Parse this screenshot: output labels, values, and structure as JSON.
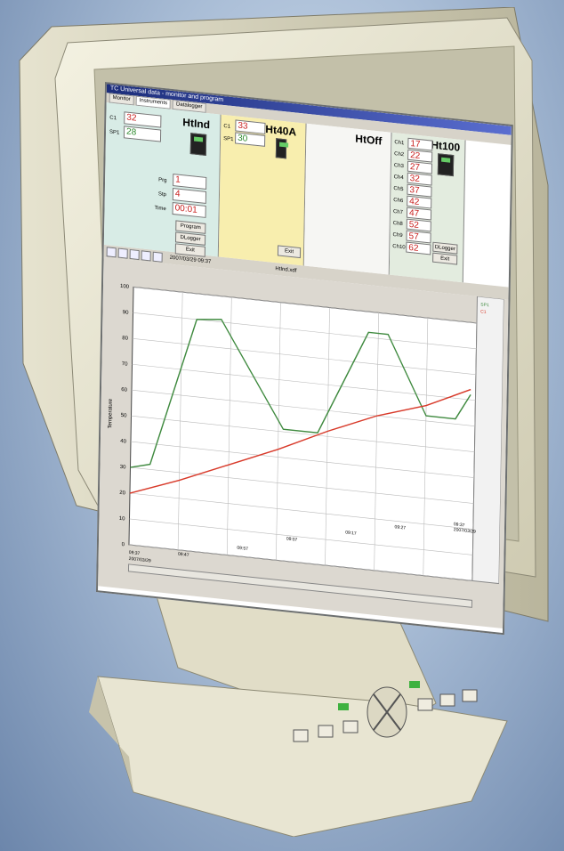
{
  "window": {
    "title": "TC Universal data - monitor and program"
  },
  "tabs": [
    {
      "label": "Monitor"
    },
    {
      "label": "Instruments"
    },
    {
      "label": "Datalogger"
    }
  ],
  "htind": {
    "title": "HtInd",
    "c1_label": "C1",
    "c1_value": "32",
    "sp1_label": "SP1",
    "sp1_value": "28",
    "prg_label": "Prg",
    "prg_value": "1",
    "stp_label": "Stp",
    "stp_value": "4",
    "time_label": "Time",
    "time_value": "00:01",
    "program_button": "Program",
    "dlogger_button": "DLogger",
    "exit_button": "Exit"
  },
  "ht40a": {
    "title": "Ht40A",
    "c1_label": "C1",
    "c1_value": "33",
    "sp1_label": "SP1",
    "sp1_value": "30",
    "exit_button": "Exit"
  },
  "htoff": {
    "title": "HtOff"
  },
  "ht100": {
    "title": "Ht100",
    "channels": [
      {
        "label": "Ch1",
        "value": "17"
      },
      {
        "label": "Ch2",
        "value": "22"
      },
      {
        "label": "Ch3",
        "value": "27"
      },
      {
        "label": "Ch4",
        "value": "32"
      },
      {
        "label": "Ch5",
        "value": "37"
      },
      {
        "label": "Ch6",
        "value": "42"
      },
      {
        "label": "Ch7",
        "value": "47"
      },
      {
        "label": "Ch8",
        "value": "52"
      },
      {
        "label": "Ch9",
        "value": "57"
      },
      {
        "label": "Ch10",
        "value": "62"
      }
    ],
    "dlogger_button": "DLogger",
    "exit_button": "Exit"
  },
  "toolbar": {
    "timestamp": "2007/03/29 09:37",
    "chart_name": "HtInd.xdf"
  },
  "chart_data": {
    "type": "line",
    "ylim": [
      0,
      100
    ],
    "yticks": [
      0,
      10,
      20,
      30,
      40,
      50,
      60,
      70,
      80,
      90,
      100
    ],
    "ylabel": "Temperature",
    "xtick_labels": [
      "09:37",
      "2007/03/29",
      "09:47",
      "09:57",
      "09:07",
      "09:17",
      "09:27",
      "09:37",
      "2007/03/29"
    ],
    "series": [
      {
        "name": "SP1",
        "color": "#3f8a3f",
        "values": [
          [
            0,
            30
          ],
          [
            4,
            32
          ],
          [
            13,
            90
          ],
          [
            18,
            91
          ],
          [
            31,
            51
          ],
          [
            38,
            51
          ],
          [
            48,
            92
          ],
          [
            52,
            92
          ],
          [
            60,
            62
          ],
          [
            66,
            62
          ],
          [
            69,
            72
          ]
        ]
      },
      {
        "name": "C1",
        "color": "#d83a2a",
        "values": [
          [
            0,
            20
          ],
          [
            10,
            27
          ],
          [
            20,
            35
          ],
          [
            30,
            43
          ],
          [
            40,
            52
          ],
          [
            50,
            60
          ],
          [
            60,
            66
          ],
          [
            69,
            74
          ]
        ]
      }
    ]
  }
}
